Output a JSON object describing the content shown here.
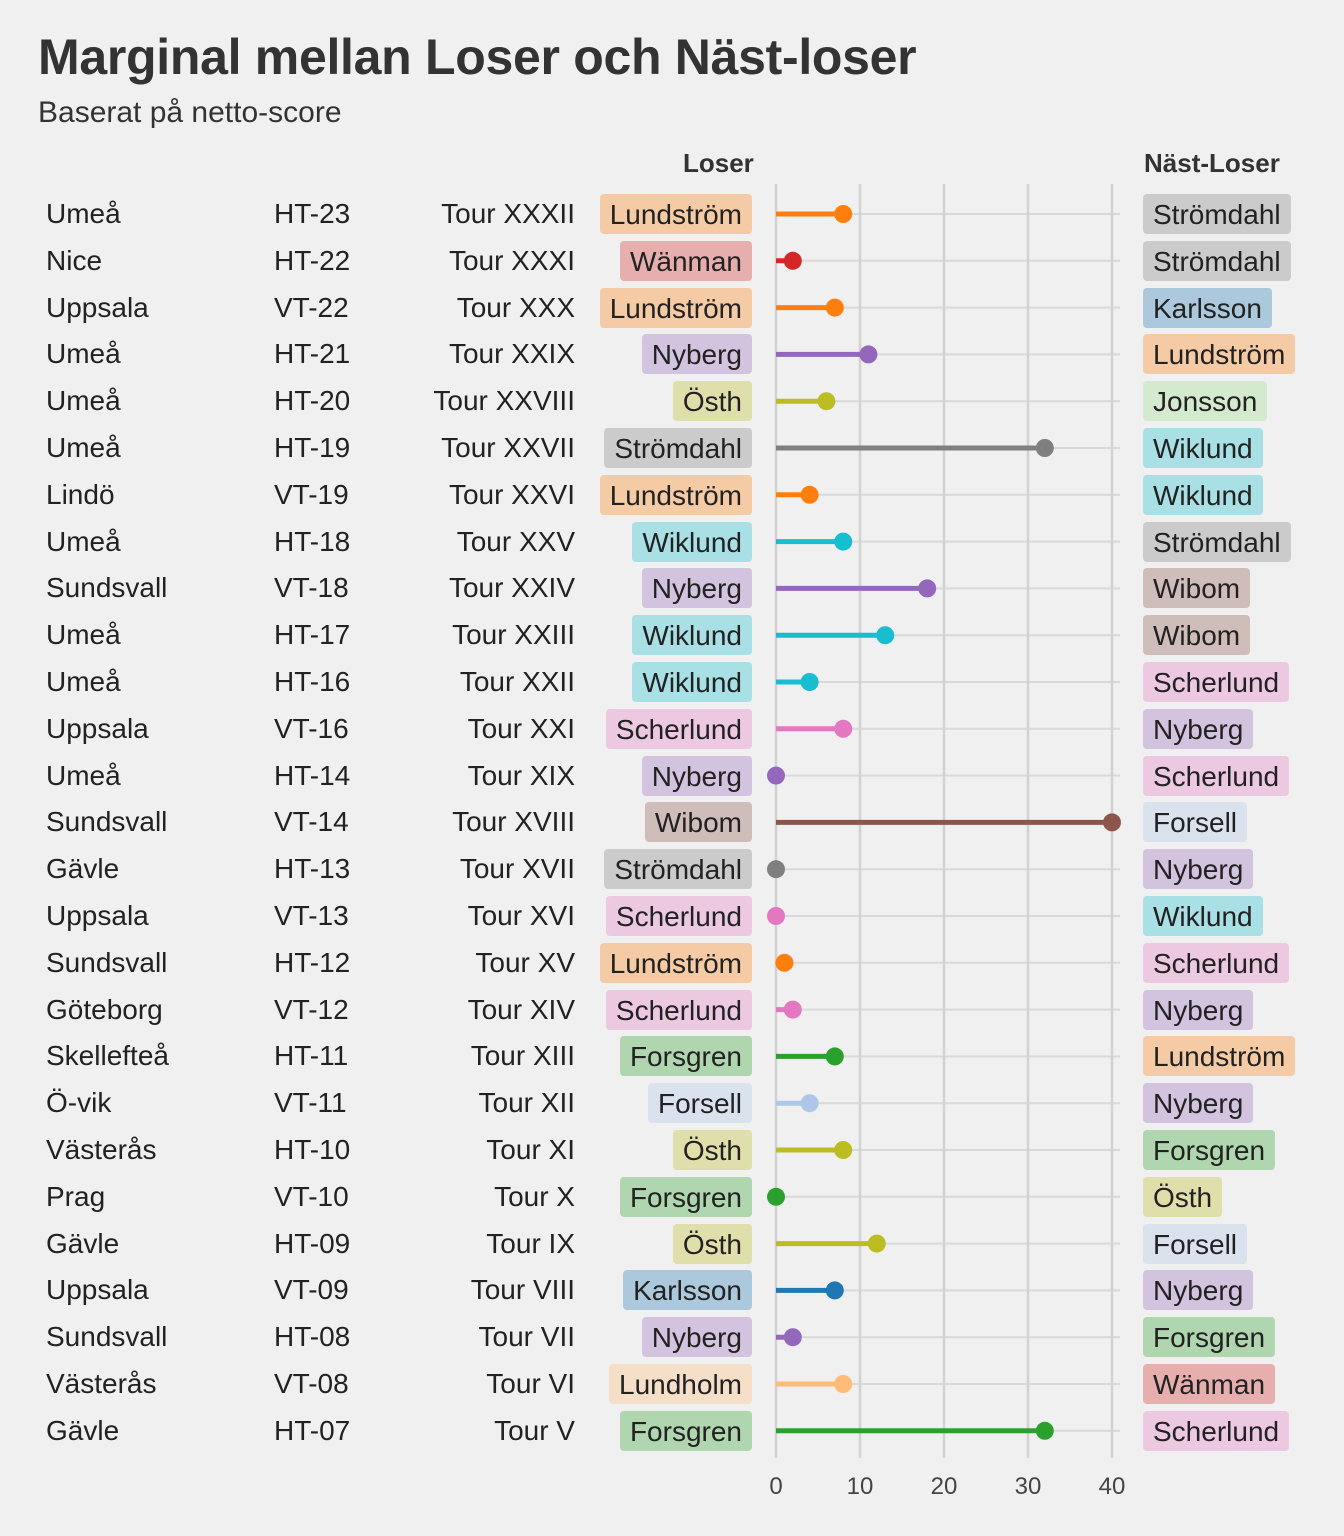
{
  "title": "Marginal mellan Loser och Näst-loser",
  "subtitle": "Baserat på netto-score",
  "headers": {
    "loser": "Loser",
    "next": "Näst-Loser"
  },
  "colors": {
    "Lundström": "#ff7f0e",
    "Wänman": "#d62728",
    "Nyberg": "#9467bd",
    "Östh": "#bcbd22",
    "Strömdahl": "#7f7f7f",
    "Wiklund": "#17becf",
    "Scherlund": "#e377c2",
    "Wibom": "#8c564b",
    "Forsgren": "#2ca02c",
    "Forsell": "#aec7e8",
    "Karlsson": "#1f77b4",
    "Lundholm": "#ffbb78",
    "Jonsson": "#98df8a"
  },
  "chart_data": {
    "type": "lollipop",
    "title": "Marginal mellan Loser och Näst-loser",
    "subtitle": "Baserat på netto-score",
    "xlim": [
      0,
      40
    ],
    "xticks": [
      0,
      10,
      20,
      30,
      40
    ],
    "grid": true,
    "rows": [
      {
        "city": "Umeå",
        "season": "HT-23",
        "tour": "Tour XXXII",
        "loser": "Lundström",
        "next": "Strömdahl",
        "margin": 8
      },
      {
        "city": "Nice",
        "season": "HT-22",
        "tour": "Tour XXXI",
        "loser": "Wänman",
        "next": "Strömdahl",
        "margin": 2
      },
      {
        "city": "Uppsala",
        "season": "VT-22",
        "tour": "Tour XXX",
        "loser": "Lundström",
        "next": "Karlsson",
        "margin": 7
      },
      {
        "city": "Umeå",
        "season": "HT-21",
        "tour": "Tour XXIX",
        "loser": "Nyberg",
        "next": "Lundström",
        "margin": 11
      },
      {
        "city": "Umeå",
        "season": "HT-20",
        "tour": "Tour XXVIII",
        "loser": "Östh",
        "next": "Jonsson",
        "margin": 6
      },
      {
        "city": "Umeå",
        "season": "HT-19",
        "tour": "Tour XXVII",
        "loser": "Strömdahl",
        "next": "Wiklund",
        "margin": 32
      },
      {
        "city": "Lindö",
        "season": "VT-19",
        "tour": "Tour XXVI",
        "loser": "Lundström",
        "next": "Wiklund",
        "margin": 4
      },
      {
        "city": "Umeå",
        "season": "HT-18",
        "tour": "Tour XXV",
        "loser": "Wiklund",
        "next": "Strömdahl",
        "margin": 8
      },
      {
        "city": "Sundsvall",
        "season": "VT-18",
        "tour": "Tour XXIV",
        "loser": "Nyberg",
        "next": "Wibom",
        "margin": 18
      },
      {
        "city": "Umeå",
        "season": "HT-17",
        "tour": "Tour XXIII",
        "loser": "Wiklund",
        "next": "Wibom",
        "margin": 13
      },
      {
        "city": "Umeå",
        "season": "HT-16",
        "tour": "Tour XXII",
        "loser": "Wiklund",
        "next": "Scherlund",
        "margin": 4
      },
      {
        "city": "Uppsala",
        "season": "VT-16",
        "tour": "Tour XXI",
        "loser": "Scherlund",
        "next": "Nyberg",
        "margin": 8
      },
      {
        "city": "Umeå",
        "season": "HT-14",
        "tour": "Tour XIX",
        "loser": "Nyberg",
        "next": "Scherlund",
        "margin": 0
      },
      {
        "city": "Sundsvall",
        "season": "VT-14",
        "tour": "Tour XVIII",
        "loser": "Wibom",
        "next": "Forsell",
        "margin": 40
      },
      {
        "city": "Gävle",
        "season": "HT-13",
        "tour": "Tour XVII",
        "loser": "Strömdahl",
        "next": "Nyberg",
        "margin": 0
      },
      {
        "city": "Uppsala",
        "season": "VT-13",
        "tour": "Tour XVI",
        "loser": "Scherlund",
        "next": "Wiklund",
        "margin": 0
      },
      {
        "city": "Sundsvall",
        "season": "HT-12",
        "tour": "Tour XV",
        "loser": "Lundström",
        "next": "Scherlund",
        "margin": 1
      },
      {
        "city": "Göteborg",
        "season": "VT-12",
        "tour": "Tour XIV",
        "loser": "Scherlund",
        "next": "Nyberg",
        "margin": 2
      },
      {
        "city": "Skellefteå",
        "season": "HT-11",
        "tour": "Tour XIII",
        "loser": "Forsgren",
        "next": "Lundström",
        "margin": 7
      },
      {
        "city": "Ö-vik",
        "season": "VT-11",
        "tour": "Tour XII",
        "loser": "Forsell",
        "next": "Nyberg",
        "margin": 4
      },
      {
        "city": "Västerås",
        "season": "HT-10",
        "tour": "Tour XI",
        "loser": "Östh",
        "next": "Forsgren",
        "margin": 8
      },
      {
        "city": "Prag",
        "season": "VT-10",
        "tour": "Tour X",
        "loser": "Forsgren",
        "next": "Östh",
        "margin": 0
      },
      {
        "city": "Gävle",
        "season": "HT-09",
        "tour": "Tour IX",
        "loser": "Östh",
        "next": "Forsell",
        "margin": 12
      },
      {
        "city": "Uppsala",
        "season": "VT-09",
        "tour": "Tour VIII",
        "loser": "Karlsson",
        "next": "Nyberg",
        "margin": 7
      },
      {
        "city": "Sundsvall",
        "season": "HT-08",
        "tour": "Tour VII",
        "loser": "Nyberg",
        "next": "Forsgren",
        "margin": 2
      },
      {
        "city": "Västerås",
        "season": "VT-08",
        "tour": "Tour VI",
        "loser": "Lundholm",
        "next": "Wänman",
        "margin": 8
      },
      {
        "city": "Gävle",
        "season": "HT-07",
        "tour": "Tour V",
        "loser": "Forsgren",
        "next": "Scherlund",
        "margin": 32
      }
    ]
  }
}
